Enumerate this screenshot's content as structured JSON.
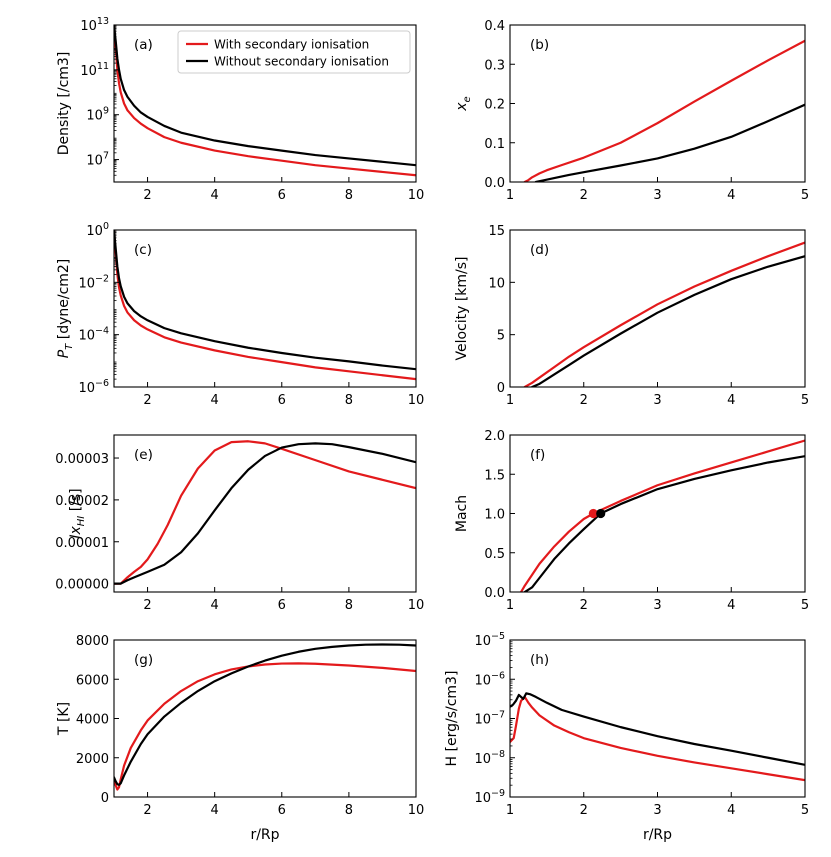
{
  "chart_data": [
    {
      "id": "a",
      "type": "line",
      "panel_label": "(a)",
      "ylabel": "Density [/cm3]",
      "xlabel": "",
      "xlim": [
        1,
        10
      ],
      "ylim_log10": [
        6,
        13
      ],
      "yscale": "log",
      "xticks": [
        "2",
        "4",
        "6",
        "8",
        "10"
      ],
      "yticks": [
        {
          "base": "10",
          "exp": "7"
        },
        {
          "base": "10",
          "exp": "9"
        },
        {
          "base": "10",
          "exp": "11"
        },
        {
          "base": "10",
          "exp": "13"
        }
      ],
      "series": [
        {
          "name": "With secondary ionisation",
          "color": "#e31a1c",
          "x": [
            1.0,
            1.05,
            1.1,
            1.15,
            1.2,
            1.3,
            1.4,
            1.6,
            1.8,
            2.0,
            2.5,
            3.0,
            4.0,
            5.0,
            6.0,
            7.0,
            8.0,
            9.0,
            10.0
          ],
          "y": [
            13,
            12.0,
            11.0,
            10.4,
            10.0,
            9.5,
            9.2,
            8.85,
            8.6,
            8.4,
            8.0,
            7.75,
            7.4,
            7.15,
            6.95,
            6.75,
            6.6,
            6.45,
            6.3
          ]
        },
        {
          "name": "Without secondary ionisation",
          "color": "#000000",
          "x": [
            1.0,
            1.05,
            1.1,
            1.15,
            1.2,
            1.3,
            1.4,
            1.6,
            1.8,
            2.0,
            2.5,
            3.0,
            4.0,
            5.0,
            6.0,
            7.0,
            8.0,
            9.0,
            10.0
          ],
          "y": [
            13,
            12.3,
            11.5,
            11.0,
            10.6,
            10.1,
            9.8,
            9.4,
            9.1,
            8.9,
            8.5,
            8.2,
            7.85,
            7.6,
            7.4,
            7.2,
            7.05,
            6.9,
            6.75
          ]
        }
      ],
      "legend": {
        "placement": "top-right",
        "entries": [
          "With secondary ionisation",
          "Without secondary ionisation"
        ]
      }
    },
    {
      "id": "b",
      "type": "line",
      "panel_label": "(b)",
      "ylabel": "x",
      "ylabel_sub": "e",
      "xlabel": "",
      "xlim": [
        1,
        5
      ],
      "ylim": [
        0,
        0.4
      ],
      "yscale": "linear",
      "xticks": [
        "1",
        "2",
        "3",
        "4",
        "5"
      ],
      "yticks": [
        "0.0",
        "0.1",
        "0.2",
        "0.3",
        "0.4"
      ],
      "series": [
        {
          "name": "With secondary ionisation",
          "color": "#e31a1c",
          "x": [
            1.2,
            1.25,
            1.3,
            1.4,
            1.5,
            1.7,
            2.0,
            2.5,
            3.0,
            3.5,
            4.0,
            4.5,
            5.0
          ],
          "y": [
            0.0,
            0.005,
            0.012,
            0.022,
            0.03,
            0.043,
            0.062,
            0.1,
            0.15,
            0.205,
            0.258,
            0.31,
            0.36
          ]
        },
        {
          "name": "Without secondary ionisation",
          "color": "#000000",
          "x": [
            1.35,
            1.45,
            1.6,
            1.8,
            2.0,
            2.5,
            3.0,
            3.5,
            4.0,
            4.5,
            5.0
          ],
          "y": [
            0.0,
            0.004,
            0.01,
            0.018,
            0.025,
            0.042,
            0.06,
            0.085,
            0.115,
            0.155,
            0.197
          ]
        }
      ]
    },
    {
      "id": "c",
      "type": "line",
      "panel_label": "(c)",
      "ylabel": "P",
      "ylabel_sub": "T",
      "ylabel_rest": " [dyne/cm2]",
      "xlabel": "",
      "xlim": [
        1,
        10
      ],
      "ylim_log10": [
        -6,
        0
      ],
      "yscale": "log",
      "xticks": [
        "2",
        "4",
        "6",
        "8",
        "10"
      ],
      "yticks": [
        {
          "base": "10",
          "exp": "−6"
        },
        {
          "base": "10",
          "exp": "−4"
        },
        {
          "base": "10",
          "exp": "−2"
        },
        {
          "base": "10",
          "exp": "0"
        }
      ],
      "series": [
        {
          "name": "With secondary ionisation",
          "color": "#e31a1c",
          "x": [
            1.0,
            1.05,
            1.1,
            1.15,
            1.2,
            1.3,
            1.4,
            1.6,
            1.8,
            2.0,
            2.5,
            3.0,
            4.0,
            5.0,
            6.0,
            7.0,
            8.0,
            9.0,
            10.0
          ],
          "y": [
            0,
            -0.9,
            -1.7,
            -2.2,
            -2.5,
            -2.9,
            -3.15,
            -3.45,
            -3.65,
            -3.8,
            -4.1,
            -4.3,
            -4.6,
            -4.85,
            -5.05,
            -5.25,
            -5.4,
            -5.55,
            -5.7
          ]
        },
        {
          "name": "Without secondary ionisation",
          "color": "#000000",
          "x": [
            1.0,
            1.05,
            1.1,
            1.15,
            1.2,
            1.3,
            1.4,
            1.6,
            1.8,
            2.0,
            2.5,
            3.0,
            4.0,
            5.0,
            6.0,
            7.0,
            8.0,
            9.0,
            10.0
          ],
          "y": [
            0,
            -0.7,
            -1.4,
            -1.85,
            -2.15,
            -2.55,
            -2.8,
            -3.1,
            -3.3,
            -3.45,
            -3.75,
            -3.95,
            -4.25,
            -4.5,
            -4.7,
            -4.88,
            -5.02,
            -5.18,
            -5.32
          ]
        }
      ]
    },
    {
      "id": "d",
      "type": "line",
      "panel_label": "(d)",
      "ylabel": "Velocity [km/s]",
      "xlabel": "",
      "xlim": [
        1,
        5
      ],
      "ylim": [
        0,
        15
      ],
      "yscale": "linear",
      "xticks": [
        "1",
        "2",
        "3",
        "4",
        "5"
      ],
      "yticks": [
        "0",
        "5",
        "10",
        "15"
      ],
      "series": [
        {
          "name": "With secondary ionisation",
          "color": "#e31a1c",
          "x": [
            1.2,
            1.3,
            1.4,
            1.6,
            1.8,
            2.0,
            2.5,
            3.0,
            3.5,
            4.0,
            4.5,
            5.0
          ],
          "y": [
            0.0,
            0.4,
            0.9,
            1.9,
            2.9,
            3.8,
            5.9,
            7.9,
            9.6,
            11.1,
            12.5,
            13.8
          ]
        },
        {
          "name": "Without secondary ionisation",
          "color": "#000000",
          "x": [
            1.3,
            1.4,
            1.6,
            1.8,
            2.0,
            2.5,
            3.0,
            3.5,
            4.0,
            4.5,
            5.0
          ],
          "y": [
            0.0,
            0.3,
            1.2,
            2.1,
            3.0,
            5.1,
            7.1,
            8.8,
            10.3,
            11.5,
            12.5
          ]
        }
      ]
    },
    {
      "id": "e",
      "type": "line",
      "panel_label": "(e)",
      "ylabel": "Jx",
      "ylabel_sub": "HI",
      "ylabel_rest": " [/s]",
      "xlabel": "",
      "xlim": [
        1,
        10
      ],
      "ylim": [
        -2e-06,
        3.55e-05
      ],
      "yscale": "linear",
      "xticks": [
        "2",
        "4",
        "6",
        "8",
        "10"
      ],
      "yticks": [
        "0.00000",
        "0.00001",
        "0.00002",
        "0.00003"
      ],
      "series": [
        {
          "name": "With secondary ionisation",
          "color": "#e31a1c",
          "x": [
            1.0,
            1.2,
            1.4,
            1.6,
            1.8,
            2.0,
            2.3,
            2.6,
            3.0,
            3.5,
            4.0,
            4.5,
            5.0,
            5.5,
            6.0,
            7.0,
            8.0,
            9.0,
            10.0
          ],
          "y": [
            0.0,
            0.0,
            1.5e-06,
            2.8e-06,
            4e-06,
            5.8e-06,
            9.5e-06,
            1.4e-05,
            2.1e-05,
            2.75e-05,
            3.18e-05,
            3.38e-05,
            3.4e-05,
            3.35e-05,
            3.22e-05,
            2.95e-05,
            2.68e-05,
            2.48e-05,
            2.28e-05
          ]
        },
        {
          "name": "Without secondary ionisation",
          "color": "#000000",
          "x": [
            1.0,
            1.2,
            1.4,
            1.6,
            2.0,
            2.5,
            3.0,
            3.5,
            4.0,
            4.5,
            5.0,
            5.5,
            6.0,
            6.5,
            7.0,
            7.5,
            8.0,
            9.0,
            10.0
          ],
          "y": [
            0.0,
            0.0,
            8e-07,
            1.5e-06,
            2.8e-06,
            4.5e-06,
            7.5e-06,
            1.2e-05,
            1.75e-05,
            2.28e-05,
            2.72e-05,
            3.05e-05,
            3.25e-05,
            3.33e-05,
            3.35e-05,
            3.33e-05,
            3.26e-05,
            3.1e-05,
            2.9e-05
          ]
        }
      ]
    },
    {
      "id": "f",
      "type": "line",
      "panel_label": "(f)",
      "ylabel": "Mach",
      "xlabel": "",
      "xlim": [
        1,
        5
      ],
      "ylim": [
        0,
        2.0
      ],
      "yscale": "linear",
      "xticks": [
        "1",
        "2",
        "3",
        "4",
        "5"
      ],
      "yticks": [
        "0.0",
        "0.5",
        "1.0",
        "1.5",
        "2.0"
      ],
      "series": [
        {
          "name": "With secondary ionisation",
          "color": "#e31a1c",
          "x": [
            1.15,
            1.2,
            1.3,
            1.4,
            1.6,
            1.8,
            2.0,
            2.13,
            2.5,
            3.0,
            3.5,
            4.0,
            4.5,
            5.0
          ],
          "y": [
            0.0,
            0.08,
            0.22,
            0.36,
            0.58,
            0.77,
            0.93,
            1.0,
            1.16,
            1.36,
            1.51,
            1.65,
            1.79,
            1.93
          ]
        },
        {
          "name": "Without secondary ionisation",
          "color": "#000000",
          "x": [
            1.2,
            1.3,
            1.4,
            1.6,
            1.8,
            2.0,
            2.23,
            2.5,
            3.0,
            3.5,
            4.0,
            4.5,
            5.0
          ],
          "y": [
            0.0,
            0.06,
            0.18,
            0.42,
            0.62,
            0.8,
            1.0,
            1.12,
            1.31,
            1.44,
            1.55,
            1.65,
            1.73
          ]
        }
      ],
      "points": [
        {
          "name": "sonic point (with)",
          "color": "#e31a1c",
          "x": 2.13,
          "y": 1.0
        },
        {
          "name": "sonic point (without)",
          "color": "#000000",
          "x": 2.23,
          "y": 1.0
        }
      ]
    },
    {
      "id": "g",
      "type": "line",
      "panel_label": "(g)",
      "ylabel": "T [K]",
      "xlabel": "r/Rp",
      "xlim": [
        1,
        10
      ],
      "ylim": [
        0,
        8000
      ],
      "yscale": "linear",
      "xticks": [
        "2",
        "4",
        "6",
        "8",
        "10"
      ],
      "yticks": [
        "0",
        "2000",
        "4000",
        "6000",
        "8000"
      ],
      "series": [
        {
          "name": "With secondary ionisation",
          "color": "#e31a1c",
          "x": [
            1.0,
            1.05,
            1.1,
            1.15,
            1.2,
            1.3,
            1.5,
            1.8,
            2.0,
            2.5,
            3.0,
            3.5,
            4.0,
            4.5,
            5.0,
            5.5,
            6.0,
            6.5,
            7.0,
            8.0,
            9.0,
            10.0
          ],
          "y": [
            900,
            600,
            380,
            500,
            900,
            1600,
            2500,
            3400,
            3900,
            4750,
            5400,
            5900,
            6250,
            6500,
            6650,
            6750,
            6800,
            6810,
            6790,
            6700,
            6580,
            6420
          ]
        },
        {
          "name": "Without secondary ionisation",
          "color": "#000000",
          "x": [
            1.0,
            1.05,
            1.1,
            1.15,
            1.2,
            1.3,
            1.5,
            1.8,
            2.0,
            2.5,
            3.0,
            3.5,
            4.0,
            4.5,
            5.0,
            5.5,
            6.0,
            6.5,
            7.0,
            7.5,
            8.0,
            8.5,
            9.0,
            9.5,
            10.0
          ],
          "y": [
            1000,
            800,
            650,
            620,
            700,
            1100,
            1800,
            2700,
            3200,
            4100,
            4800,
            5400,
            5900,
            6300,
            6650,
            6950,
            7200,
            7400,
            7550,
            7650,
            7720,
            7760,
            7770,
            7760,
            7720
          ]
        }
      ]
    },
    {
      "id": "h",
      "type": "line",
      "panel_label": "(h)",
      "ylabel": "H [erg/s/cm3]",
      "xlabel": "r/Rp",
      "xlim": [
        1,
        5
      ],
      "ylim_log10": [
        -9,
        -5
      ],
      "yscale": "log",
      "xticks": [
        "1",
        "2",
        "3",
        "4",
        "5"
      ],
      "yticks": [
        {
          "base": "10",
          "exp": "−9"
        },
        {
          "base": "10",
          "exp": "−8"
        },
        {
          "base": "10",
          "exp": "−7"
        },
        {
          "base": "10",
          "exp": "−6"
        },
        {
          "base": "10",
          "exp": "−5"
        }
      ],
      "series": [
        {
          "name": "With secondary ionisation",
          "color": "#e31a1c",
          "x": [
            1.0,
            1.05,
            1.08,
            1.12,
            1.15,
            1.2,
            1.25,
            1.3,
            1.4,
            1.6,
            1.8,
            2.0,
            2.5,
            3.0,
            3.5,
            4.0,
            4.5,
            5.0
          ],
          "y": [
            -7.6,
            -7.5,
            -7.2,
            -6.75,
            -6.55,
            -6.45,
            -6.6,
            -6.72,
            -6.92,
            -7.18,
            -7.35,
            -7.5,
            -7.75,
            -7.95,
            -8.12,
            -8.27,
            -8.42,
            -8.57
          ]
        },
        {
          "name": "Without secondary ionisation",
          "color": "#000000",
          "x": [
            1.0,
            1.04,
            1.08,
            1.12,
            1.15,
            1.18,
            1.22,
            1.27,
            1.35,
            1.5,
            1.7,
            2.0,
            2.5,
            3.0,
            3.5,
            4.0,
            4.5,
            5.0
          ],
          "y": [
            -6.7,
            -6.65,
            -6.55,
            -6.4,
            -6.45,
            -6.5,
            -6.36,
            -6.38,
            -6.45,
            -6.6,
            -6.78,
            -6.95,
            -7.22,
            -7.45,
            -7.65,
            -7.82,
            -8.0,
            -8.18
          ]
        }
      ]
    }
  ]
}
